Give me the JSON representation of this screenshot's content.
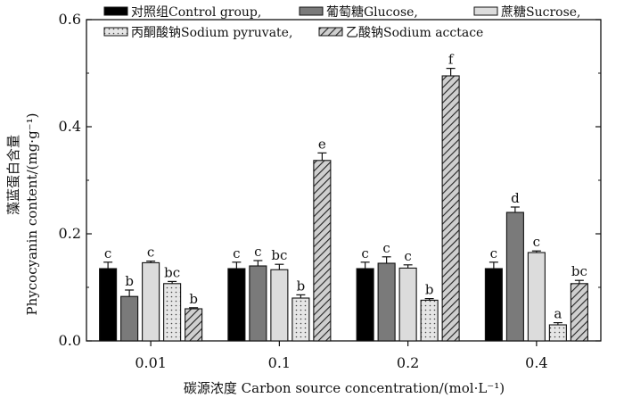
{
  "chart_data": {
    "type": "bar",
    "ylabel_line1": "藻蓝蛋白含量",
    "ylabel_line2": "Phycocyanin content/(mg·g⁻¹)",
    "xlabel": "碳源浓度 Carbon source concentration/(mol·L⁻¹)",
    "categories": [
      "0.01",
      "0.1",
      "0.2",
      "0.4"
    ],
    "ylim": [
      0,
      0.6
    ],
    "yticks": [
      "0.0",
      "0.2",
      "0.4",
      "0.6"
    ],
    "grid": false,
    "legend_position": "top",
    "series": [
      {
        "name": "对照组Control group,",
        "pattern": "solid-black",
        "values": [
          0.135,
          0.135,
          0.135,
          0.135
        ],
        "errors": [
          0.012,
          0.012,
          0.012,
          0.012
        ],
        "labels": [
          "c",
          "c",
          "c",
          "c"
        ]
      },
      {
        "name": "葡萄糖Glucose,",
        "pattern": "solid-gray",
        "values": [
          0.083,
          0.14,
          0.145,
          0.24
        ],
        "errors": [
          0.012,
          0.01,
          0.012,
          0.01
        ],
        "labels": [
          "b",
          "c",
          "c",
          "d"
        ]
      },
      {
        "name": "蔗糖Sucrose,",
        "pattern": "light-gray",
        "values": [
          0.146,
          0.133,
          0.136,
          0.165
        ],
        "errors": [
          0.003,
          0.01,
          0.006,
          0.003
        ],
        "labels": [
          "c",
          "bc",
          "c",
          "c"
        ]
      },
      {
        "name": "丙酮酸钠Sodium pyruvate,",
        "pattern": "dotted",
        "values": [
          0.107,
          0.08,
          0.076,
          0.03
        ],
        "errors": [
          0.004,
          0.006,
          0.003,
          0.004
        ],
        "labels": [
          "bc",
          "b",
          "b",
          "a"
        ]
      },
      {
        "name": "乙酸钠Sodium acctace",
        "pattern": "hatched",
        "values": [
          0.06,
          0.337,
          0.495,
          0.107
        ],
        "errors": [
          0.002,
          0.014,
          0.014,
          0.006
        ],
        "labels": [
          "b",
          "e",
          "f",
          "bc"
        ]
      }
    ],
    "colors": {
      "solid-black": "#000000",
      "solid-gray": "#7a7a7a",
      "light-gray": "#dcdcdc",
      "dotted-bg": "#e6e6e6",
      "hatched-bg": "#cfcfcf",
      "ink": "#111111"
    }
  }
}
